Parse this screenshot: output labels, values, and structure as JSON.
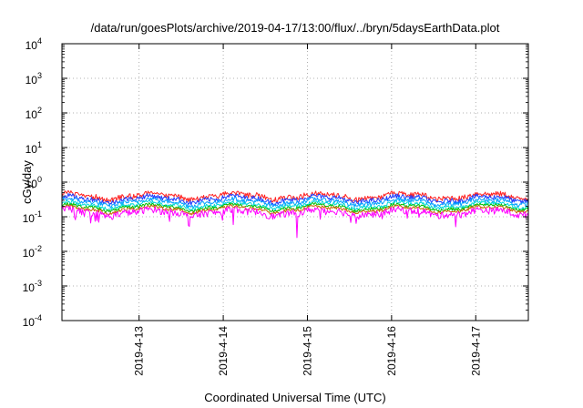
{
  "chart_data": {
    "type": "line",
    "title": "/data/run/goesPlots/archive/2019-04-17/13:00/flux/../bryn/5daysEarthData.plot",
    "xlabel": "Coordinated Universal Time (UTC)",
    "ylabel": "cGy/day",
    "yscale": "log",
    "ylim": [
      0.0001,
      10000
    ],
    "y_ticks": [
      {
        "base": "10",
        "exp": "-4"
      },
      {
        "base": "10",
        "exp": "-3"
      },
      {
        "base": "10",
        "exp": "-2"
      },
      {
        "base": "10",
        "exp": "-1"
      },
      {
        "base": "10",
        "exp": "0"
      },
      {
        "base": "10",
        "exp": "1"
      },
      {
        "base": "10",
        "exp": "2"
      },
      {
        "base": "10",
        "exp": "3"
      },
      {
        "base": "10",
        "exp": "4"
      }
    ],
    "xlim": [
      "2019-04-12T02:00",
      "2019-04-17T15:00"
    ],
    "x_ticks": [
      "2019-4-13",
      "2019-4-14",
      "2019-4-15",
      "2019-4-16",
      "2019-4-17"
    ],
    "grid": true,
    "series": [
      {
        "color": "#ff2020",
        "level": 0.4,
        "spread": 0.18
      },
      {
        "color": "#1f3cff",
        "level": 0.33,
        "spread": 0.16
      },
      {
        "color": "#00a0ff",
        "level": 0.27,
        "spread": 0.14
      },
      {
        "color": "#00d8d8",
        "level": 0.22,
        "spread": 0.12
      },
      {
        "color": "#00c000",
        "level": 0.19,
        "spread": 0.1
      },
      {
        "color": "#c86400",
        "level": 0.165,
        "spread": 0.1
      },
      {
        "color": "#ff00ff",
        "level": 0.135,
        "spread": 0.22
      }
    ],
    "notable_dips": [
      {
        "x": "2019-04-14T21:00",
        "y": 0.025
      }
    ]
  }
}
